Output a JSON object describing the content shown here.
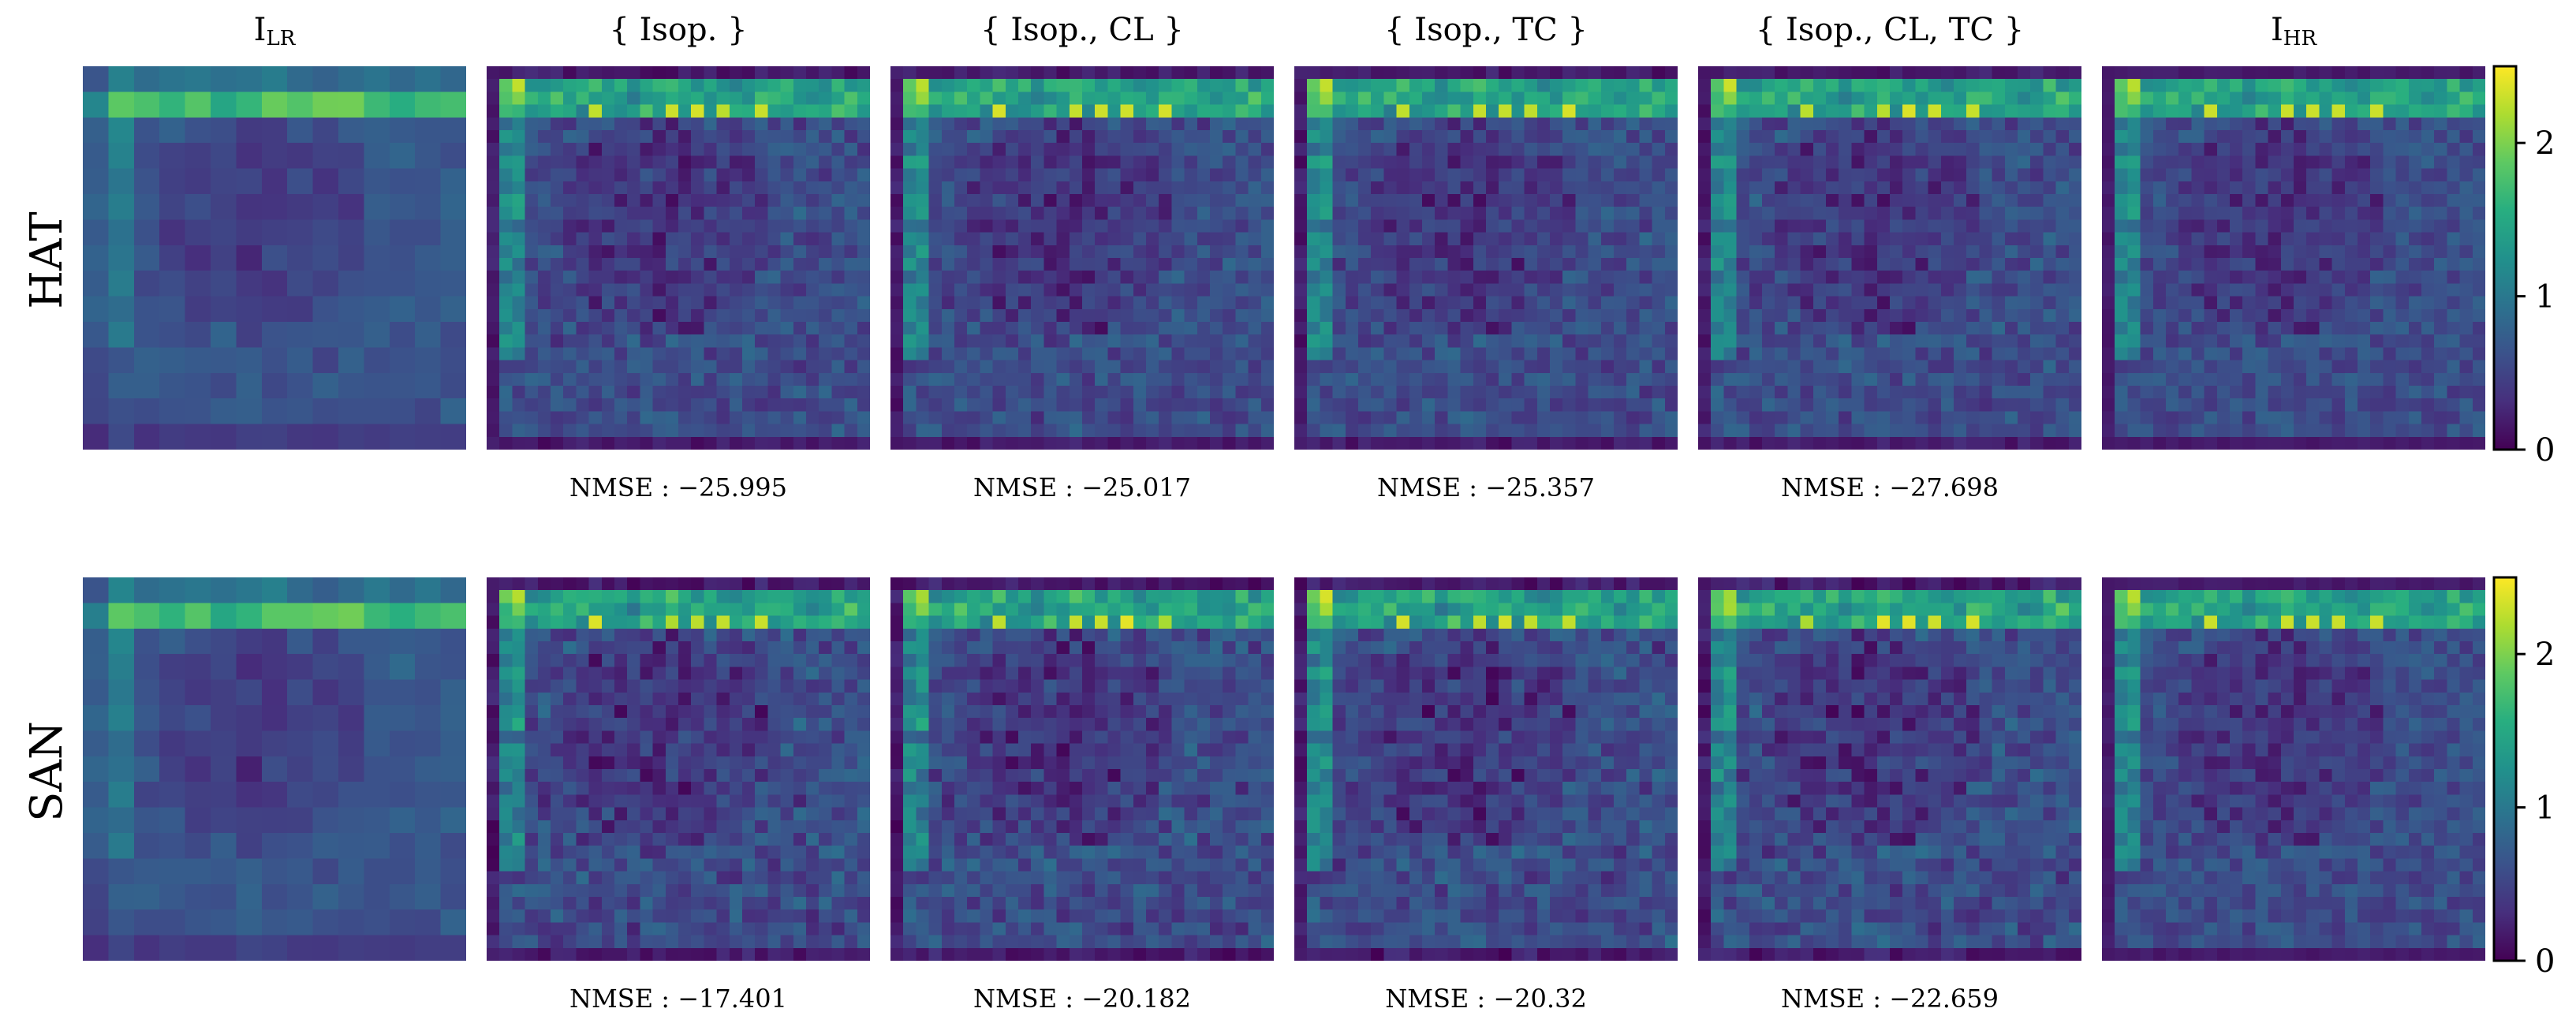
{
  "chart_data": {
    "type": "heatmap",
    "title": "",
    "colormap": "viridis",
    "value_range": [
      0,
      2.5
    ],
    "colorbar_ticks": [
      "0",
      "1",
      "2"
    ],
    "colorbar_tick_values": [
      0,
      1,
      2
    ],
    "columns": [
      {
        "main": "I",
        "sub": "LR",
        "grid": 15
      },
      {
        "main": "{ Isop. }",
        "sub": "",
        "grid": 30
      },
      {
        "main": "{ Isop., CL }",
        "sub": "",
        "grid": 30
      },
      {
        "main": "{ Isop., TC }",
        "sub": "",
        "grid": 30
      },
      {
        "main": "{ Isop., CL, TC }",
        "sub": "",
        "grid": 30
      },
      {
        "main": "I",
        "sub": "HR",
        "grid": 30
      }
    ],
    "rows": [
      {
        "label": "HAT",
        "metrics": [
          "",
          "NMSE : −25.995",
          "NMSE : −25.017",
          "NMSE : −25.357",
          "NMSE : −27.698",
          ""
        ]
      },
      {
        "label": "SAN",
        "metrics": [
          "",
          "NMSE : −17.401",
          "NMSE : −20.182",
          "NMSE : −20.32",
          "NMSE : −22.659",
          ""
        ]
      }
    ]
  }
}
